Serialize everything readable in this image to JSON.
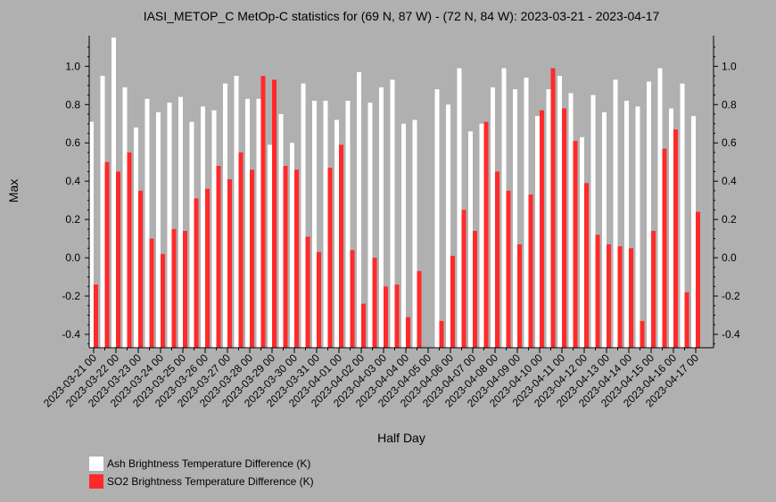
{
  "chart_data": {
    "type": "bar",
    "title": "IASI_METOP_C MetOp-C statistics for (69 N, 87 W) - (72 N, 84 W): 2023-03-21 - 2023-04-17",
    "xlabel": "Half Day",
    "ylabel": "Max",
    "ylim": [
      -0.47,
      1.16
    ],
    "yticks": [
      -0.4,
      -0.2,
      0.0,
      0.2,
      0.4,
      0.6,
      0.8,
      1.0
    ],
    "ytick_labels": [
      "-0.4",
      "-0.2",
      "0.0",
      "0.2",
      "0.4",
      "0.6",
      "0.8",
      "1.0"
    ],
    "xtick_labels": [
      "2023-03-21 00",
      "2023-03-22 00",
      "2023-03-23 00",
      "2023-03-24 00",
      "2023-03-25 00",
      "2023-03-26 00",
      "2023-03-27 00",
      "2023-03-28 00",
      "2023-03-29 00",
      "2023-03-30 00",
      "2023-03-31 00",
      "2023-04-01 00",
      "2023-04-02 00",
      "2023-04-03 00",
      "2023-04-04 00",
      "2023-04-05 00",
      "2023-04-06 00",
      "2023-04-07 00",
      "2023-04-08 00",
      "2023-04-09 00",
      "2023-04-10 00",
      "2023-04-11 00",
      "2023-04-12 00",
      "2023-04-13 00",
      "2023-04-14 00",
      "2023-04-15 00",
      "2023-04-16 00",
      "2023-04-17 00"
    ],
    "grid": false,
    "legend_position": "bottom-left",
    "series": [
      {
        "name": "Ash Brightness Temperature Difference (K)",
        "color": "#ffffff",
        "values": [
          0.71,
          0.95,
          1.15,
          0.89,
          0.68,
          0.83,
          0.76,
          0.81,
          0.84,
          0.71,
          0.79,
          0.77,
          0.91,
          0.95,
          0.83,
          0.83,
          0.59,
          0.75,
          0.6,
          0.91,
          0.82,
          0.82,
          0.72,
          0.82,
          0.97,
          0.81,
          0.89,
          0.93,
          0.7,
          0.72,
          null,
          0.88,
          0.8,
          0.99,
          0.66,
          0.7,
          0.89,
          0.99,
          0.88,
          0.94,
          0.74,
          0.88,
          0.95,
          0.86,
          0.63,
          0.85,
          0.76,
          0.93,
          0.82,
          0.79,
          0.92,
          0.99,
          0.78,
          0.91,
          0.74
        ]
      },
      {
        "name": "SO2 Brightness Temperature Difference (K)",
        "color": "#ff2a2a",
        "values": [
          -0.14,
          0.5,
          0.45,
          0.55,
          0.35,
          0.1,
          0.02,
          0.15,
          0.14,
          0.31,
          0.36,
          0.48,
          0.41,
          0.55,
          0.46,
          0.95,
          0.93,
          0.48,
          0.46,
          0.11,
          0.03,
          0.47,
          0.59,
          0.04,
          -0.24,
          0.0,
          -0.15,
          -0.14,
          -0.31,
          -0.07,
          null,
          -0.33,
          0.01,
          0.25,
          0.14,
          0.71,
          0.45,
          0.35,
          0.07,
          0.33,
          0.77,
          0.99,
          0.78,
          0.61,
          0.39,
          0.12,
          0.07,
          0.06,
          0.05,
          -0.33,
          0.14,
          0.57,
          0.67,
          -0.18,
          0.24
        ]
      }
    ]
  }
}
